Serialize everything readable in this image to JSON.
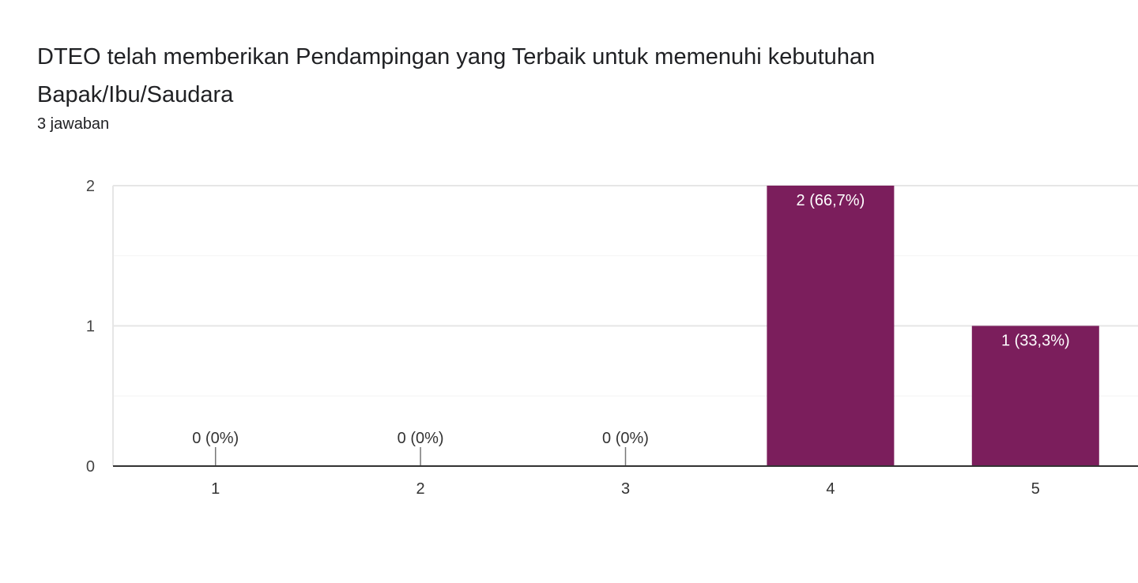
{
  "header": {
    "title": "DTEO telah memberikan Pendampingan yang Terbaik untuk memenuhi kebutuhan Bapak/Ibu/Saudara",
    "responses": "3 jawaban"
  },
  "chart_data": {
    "type": "bar",
    "categories": [
      "1",
      "2",
      "3",
      "4",
      "5"
    ],
    "values": [
      0,
      0,
      0,
      2,
      1
    ],
    "data_labels": [
      "0 (0%)",
      "0 (0%)",
      "0 (0%)",
      "2 (66,7%)",
      "1 (33,3%)"
    ],
    "ylim": [
      0,
      2
    ],
    "yticks": [
      "0",
      "1",
      "2"
    ],
    "grid": true,
    "bar_color": "#7b1e5c"
  }
}
